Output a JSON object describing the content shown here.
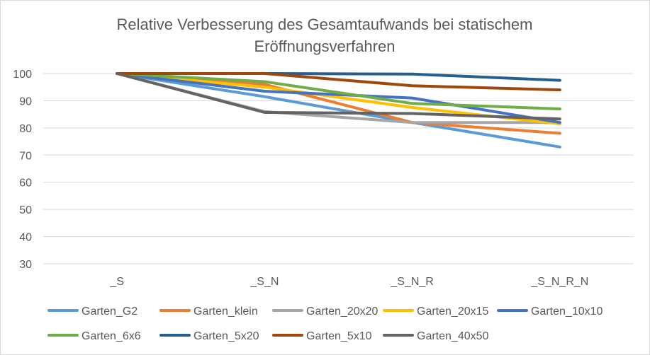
{
  "chart_data": {
    "type": "line",
    "title_lines": [
      "Relative Verbesserung des Gesamtaufwands bei statischem",
      "Eröffnungsverfahren"
    ],
    "xlabel": "",
    "ylabel": "",
    "categories": [
      "_S",
      "_S_N",
      "_S_N_R",
      "_S_N_R_N"
    ],
    "ylim": [
      30,
      100
    ],
    "yticks": [
      30,
      40,
      50,
      60,
      70,
      80,
      90,
      100
    ],
    "grid": "horizontal",
    "legend_position": "bottom",
    "series": [
      {
        "name": "Garten_G2",
        "color": "#5B9BD5",
        "values": [
          100,
          91.5,
          82,
          73
        ]
      },
      {
        "name": "Garten_klein",
        "color": "#ED7D31",
        "values": [
          100,
          96,
          82,
          78
        ]
      },
      {
        "name": "Garten_20x20",
        "color": "#A5A5A5",
        "values": [
          100,
          86,
          82,
          82
        ]
      },
      {
        "name": "Garten_20x15",
        "color": "#FFC000",
        "values": [
          100,
          95,
          87.5,
          81.5
        ]
      },
      {
        "name": "Garten_10x10",
        "color": "#4472C4",
        "values": [
          100,
          93.5,
          91,
          82
        ]
      },
      {
        "name": "Garten_6x6",
        "color": "#70AD47",
        "values": [
          100,
          97,
          89,
          87
        ]
      },
      {
        "name": "Garten_5x20",
        "color": "#255E91",
        "values": [
          100,
          100,
          99.8,
          97.5
        ]
      },
      {
        "name": "Garten_5x10",
        "color": "#9E480E",
        "values": [
          100,
          100,
          95.5,
          94
        ]
      },
      {
        "name": "Garten_40x50",
        "color": "#636363",
        "values": [
          100,
          85.7,
          85.3,
          83.3
        ]
      }
    ]
  }
}
